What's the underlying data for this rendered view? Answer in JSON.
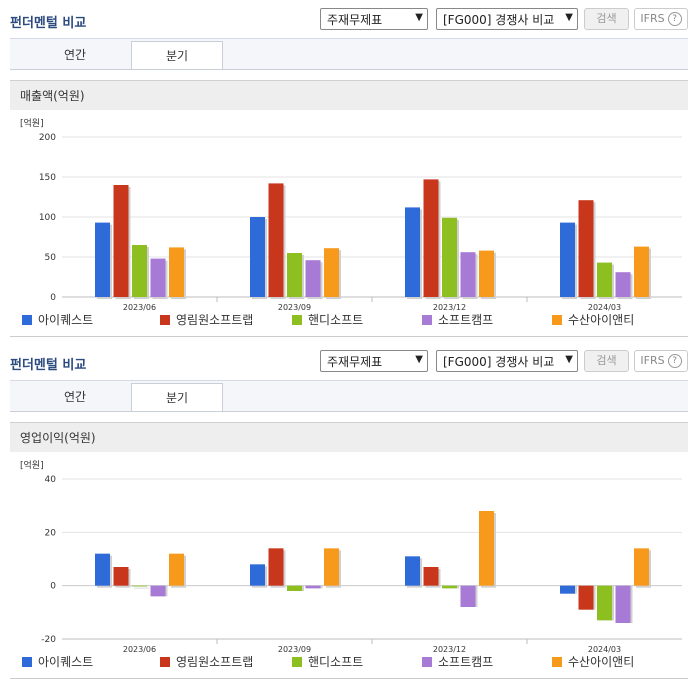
{
  "colors": [
    "#2f6bd8",
    "#c8361c",
    "#8cbf1f",
    "#a77ad6",
    "#f79a1c"
  ],
  "panels": [
    {
      "title": "펀더멘털 비교",
      "select_statement": "주재무제표",
      "select_compare": "[FG000] 경쟁사 비교",
      "search_label": "검색",
      "ifrs_label": "IFRS",
      "help_glyph": "?",
      "tab_year": "연간",
      "tab_quarter": "분기",
      "subheader": "매출액(억원)",
      "unit_label": "[억원]"
    },
    {
      "title": "펀더멘털 비교",
      "select_statement": "주재무제표",
      "select_compare": "[FG000] 경쟁사 비교",
      "search_label": "검색",
      "ifrs_label": "IFRS",
      "help_glyph": "?",
      "tab_year": "연간",
      "tab_quarter": "분기",
      "subheader": "영업이익(억원)",
      "unit_label": "[억원]"
    }
  ],
  "chart_data": [
    {
      "type": "bar",
      "title": "매출액(억원)",
      "categories": [
        "2023/06",
        "2023/09",
        "2023/12",
        "2024/03"
      ],
      "ylim": [
        0,
        200
      ],
      "yticks": [
        0,
        50,
        100,
        150,
        200
      ],
      "grid": true,
      "legend": "bottom",
      "series": [
        {
          "name": "아이퀘스트",
          "values": [
            93,
            100,
            112,
            93
          ]
        },
        {
          "name": "영림원소프트랩",
          "values": [
            140,
            142,
            147,
            121
          ]
        },
        {
          "name": "핸디소프트",
          "values": [
            65,
            55,
            99,
            43
          ]
        },
        {
          "name": "소프트캠프",
          "values": [
            48,
            46,
            56,
            31
          ]
        },
        {
          "name": "수산아이앤티",
          "values": [
            62,
            61,
            58,
            63
          ]
        }
      ]
    },
    {
      "type": "bar",
      "title": "영업이익(억원)",
      "categories": [
        "2023/06",
        "2023/09",
        "2023/12",
        "2024/03"
      ],
      "ylim": [
        -20,
        40
      ],
      "yticks": [
        -20,
        0,
        20,
        40
      ],
      "grid": true,
      "legend": "bottom",
      "series": [
        {
          "name": "아이퀘스트",
          "values": [
            12,
            8,
            11,
            -3
          ]
        },
        {
          "name": "영림원소프트랩",
          "values": [
            7,
            14,
            7,
            -9
          ]
        },
        {
          "name": "핸디소프트",
          "values": [
            0,
            -2,
            -1,
            -13
          ]
        },
        {
          "name": "소프트캠프",
          "values": [
            -4,
            -1,
            -8,
            -14
          ]
        },
        {
          "name": "수산아이앤티",
          "values": [
            12,
            14,
            28,
            14
          ]
        }
      ]
    }
  ]
}
